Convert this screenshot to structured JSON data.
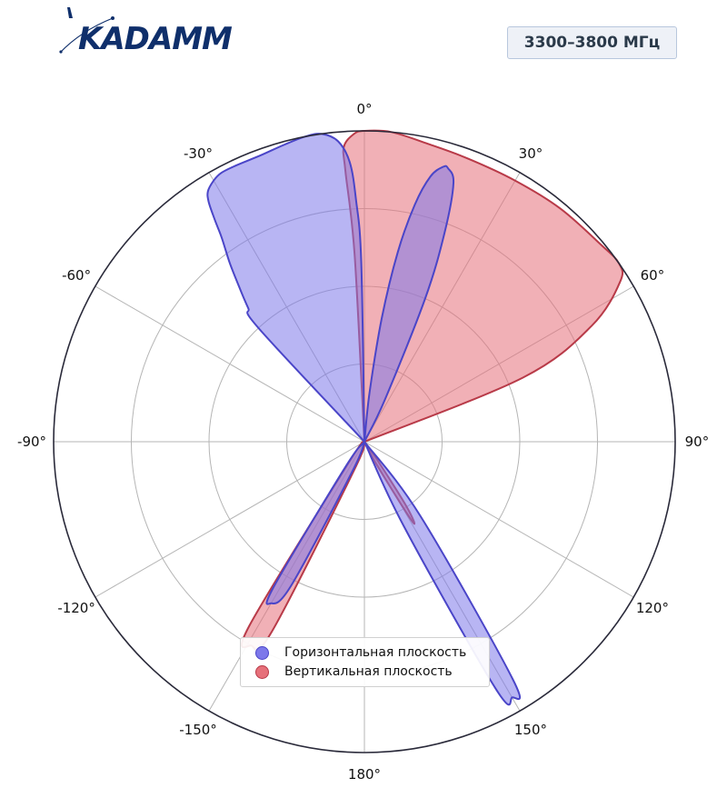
{
  "header": {
    "logo_text": "KADAMM",
    "logo_color": "#0f2f6b",
    "badge_label": "3300–3800 МГц"
  },
  "legend": {
    "items": [
      {
        "label": "Горизонтальная плоскость",
        "fill": "#7d78ea",
        "edge": "#4a45c8"
      },
      {
        "label": "Вертикальная плоскость",
        "fill": "#e6707a",
        "edge": "#b83a48"
      }
    ]
  },
  "chart_data": {
    "type": "polar-area",
    "theta_zero": "top",
    "theta_direction": "clockwise",
    "r_range": [
      0,
      1
    ],
    "r_gridlines": [
      0.25,
      0.5,
      0.75
    ],
    "grid": true,
    "angle_ticks": [
      "0°",
      "30°",
      "60°",
      "90°",
      "120°",
      "150°",
      "180°",
      "-150°",
      "-120°",
      "-90°",
      "-60°",
      "-30°"
    ],
    "legend_position": "bottom-center",
    "series": [
      {
        "name": "Горизонтальная плоскость",
        "color": "#7d78ea",
        "edge": "#4a45c8",
        "lobes": [
          {
            "points": [
              [
                -1,
                0.58
              ],
              [
                -2,
                0.78
              ],
              [
                -3,
                0.9
              ],
              [
                -5,
                0.97
              ],
              [
                -8,
                1.0
              ],
              [
                -11,
                1.0
              ],
              [
                -15,
                0.99
              ],
              [
                -20,
                0.98
              ],
              [
                -25,
                0.98
              ],
              [
                -28,
                0.98
              ],
              [
                -30,
                0.97
              ],
              [
                -32,
                0.95
              ],
              [
                -33,
                0.92
              ],
              [
                -34,
                0.86
              ],
              [
                -35,
                0.8
              ],
              [
                -37,
                0.72
              ],
              [
                -39,
                0.64
              ],
              [
                -41,
                0.57
              ],
              [
                -43,
                0.5
              ]
            ]
          },
          {
            "points": [
              [
                6,
                0.16
              ],
              [
                8,
                0.4
              ],
              [
                10,
                0.62
              ],
              [
                12,
                0.78
              ],
              [
                14,
                0.88
              ],
              [
                16,
                0.92
              ],
              [
                17,
                0.92
              ],
              [
                19,
                0.88
              ],
              [
                21,
                0.72
              ],
              [
                23,
                0.5
              ],
              [
                26,
                0.15
              ]
            ]
          },
          {
            "points": [
              [
                143,
                0.3
              ],
              [
                148,
                0.9
              ],
              [
                150,
                0.95
              ],
              [
                152,
                0.9
              ],
              [
                155,
                0.3
              ]
            ]
          },
          {
            "points": [
              [
                -143,
                0.1
              ],
              [
                -148,
                0.55
              ],
              [
                -150,
                0.6
              ],
              [
                -153,
                0.52
              ],
              [
                -158,
                0.1
              ]
            ]
          }
        ]
      },
      {
        "name": "Вертикальная плоскость",
        "color": "#e6707a",
        "edge": "#b83a48",
        "lobes": [
          {
            "points": [
              [
                -3,
                0.6
              ],
              [
                -4,
                0.87
              ],
              [
                -4,
                0.95
              ],
              [
                -2,
                0.99
              ],
              [
                0,
                1.0
              ],
              [
                5,
                1.0
              ],
              [
                12,
                0.98
              ],
              [
                20,
                0.97
              ],
              [
                30,
                0.97
              ],
              [
                40,
                0.98
              ],
              [
                50,
                0.99
              ],
              [
                55,
                1.0
              ],
              [
                58,
                0.97
              ],
              [
                63,
                0.82
              ],
              [
                68,
                0.55
              ]
            ]
          },
          {
            "points": [
              [
                145,
                0.08
              ],
              [
                147,
                0.25
              ],
              [
                149,
                0.3
              ],
              [
                152,
                0.08
              ]
            ]
          },
          {
            "points": [
              [
                -143,
                0.08
              ],
              [
                -148,
                0.7
              ],
              [
                -151,
                0.75
              ],
              [
                -154,
                0.68
              ],
              [
                -160,
                0.1
              ]
            ]
          }
        ]
      }
    ]
  }
}
